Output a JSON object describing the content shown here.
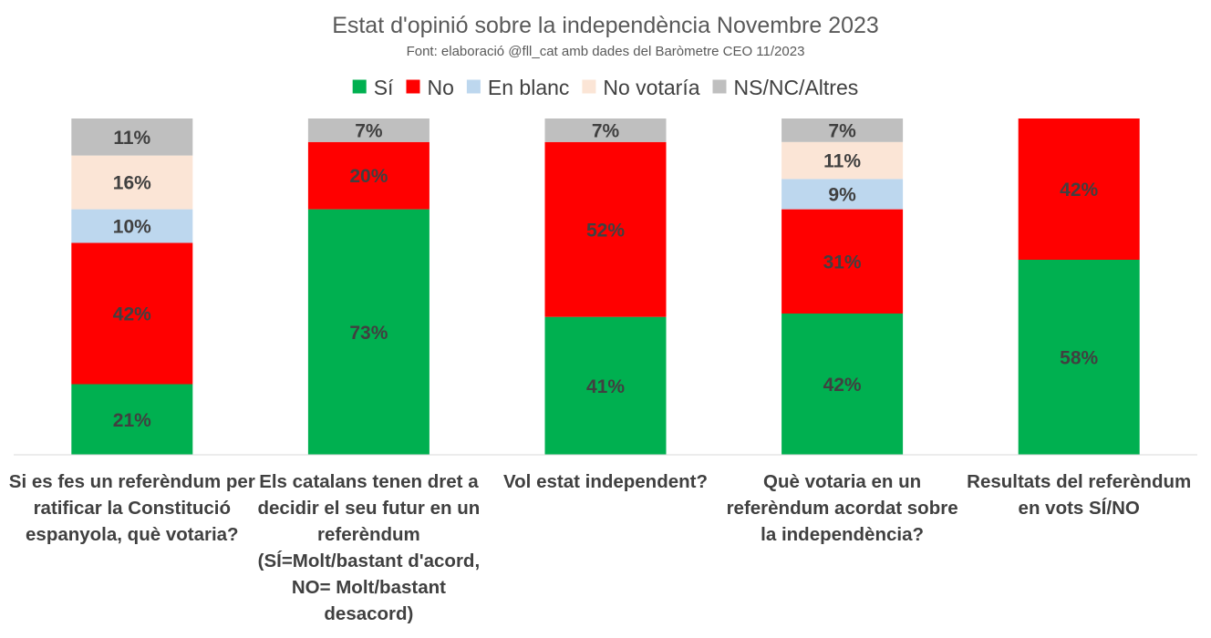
{
  "chart_data": {
    "type": "bar",
    "stacked": true,
    "percent_stacked": true,
    "title": "Estat d'opinió sobre la independència Novembre 2023",
    "subtitle": "Font: elaboració @fll_cat amb dades del Baròmetre CEO 11/2023",
    "legend_position": "top",
    "grid": false,
    "ylim": [
      0,
      100
    ],
    "categories": [
      "Si es fes un referèndum per ratificar la Constitució espanyola, què votaria?",
      "Els catalans tenen dret a decidir el seu futur en un referèndum\n(SÍ=Molt/bastant d'acord, NO= Molt/bastant desacord)",
      "Vol estat independent?",
      "Què votaria en un referèndum acordat sobre la independència?",
      "Resultats del referèndum en vots SÍ/NO"
    ],
    "series": [
      {
        "name": "Sí",
        "color": "#00b050",
        "values": [
          21,
          73,
          41,
          42,
          58
        ]
      },
      {
        "name": "No",
        "color": "#ff0000",
        "values": [
          42,
          20,
          52,
          31,
          42
        ]
      },
      {
        "name": "En blanc",
        "color": "#bdd7ee",
        "values": [
          10,
          0,
          0,
          9,
          0
        ]
      },
      {
        "name": "No votaría",
        "color": "#fbe5d6",
        "values": [
          16,
          0,
          0,
          11,
          0
        ]
      },
      {
        "name": "NS/NC/Altres",
        "color": "#bfbfbf",
        "values": [
          11,
          7,
          7,
          7,
          0
        ]
      }
    ],
    "data_labels": [
      [
        "21%",
        "73%",
        "41%",
        "42%",
        "58%"
      ],
      [
        "42%",
        "20%",
        "52%",
        "31%",
        "42%"
      ],
      [
        "10%",
        "",
        "",
        "9%",
        ""
      ],
      [
        "16%",
        "",
        "",
        "11%",
        ""
      ],
      [
        "11%",
        "7%",
        "7%",
        "7%",
        ""
      ]
    ]
  }
}
